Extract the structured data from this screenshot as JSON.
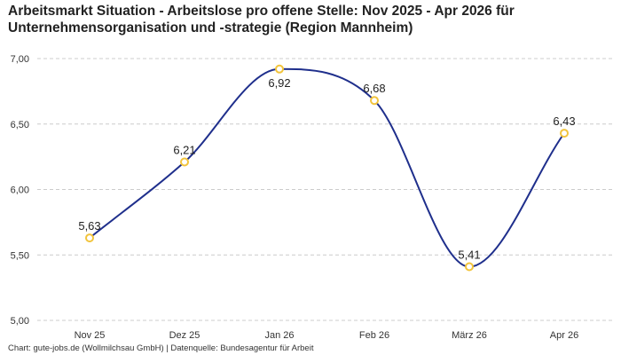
{
  "title_line1": "Arbeitsmarkt Situation - Arbeitslose pro offene Stelle: Nov 2025 - Apr 2026 für",
  "title_line2": "Unternehmensorganisation und -strategie (Region Mannheim)",
  "footer": "Chart: gute-jobs.de (Wollmilchsau GmbH) | Datenquelle: Bundesagentur für Arbeit",
  "colors": {
    "line": "#1f2f8c",
    "marker": "#f2c43c",
    "grid": "#cccccc",
    "text": "#222222"
  },
  "chart_data": {
    "type": "line",
    "title": "Arbeitsmarkt Situation - Arbeitslose pro offene Stelle: Nov 2025 - Apr 2026 für Unternehmensorganisation und -strategie (Region Mannheim)",
    "categories": [
      "Nov 25",
      "Dez 25",
      "Jan 26",
      "Feb 26",
      "März 26",
      "Apr 26"
    ],
    "values": [
      5.63,
      6.21,
      6.92,
      6.68,
      5.41,
      6.43
    ],
    "data_labels": [
      "5,63",
      "6,21",
      "6,92",
      "6,68",
      "5,41",
      "6,43"
    ],
    "y_ticks": [
      "5,00",
      "5,50",
      "6,00",
      "6,50",
      "7,00"
    ],
    "ylim": [
      5.0,
      7.0
    ],
    "xlabel": "",
    "ylabel": "",
    "grid": "horizontal dashed",
    "legend": "none",
    "curve": "smooth"
  }
}
